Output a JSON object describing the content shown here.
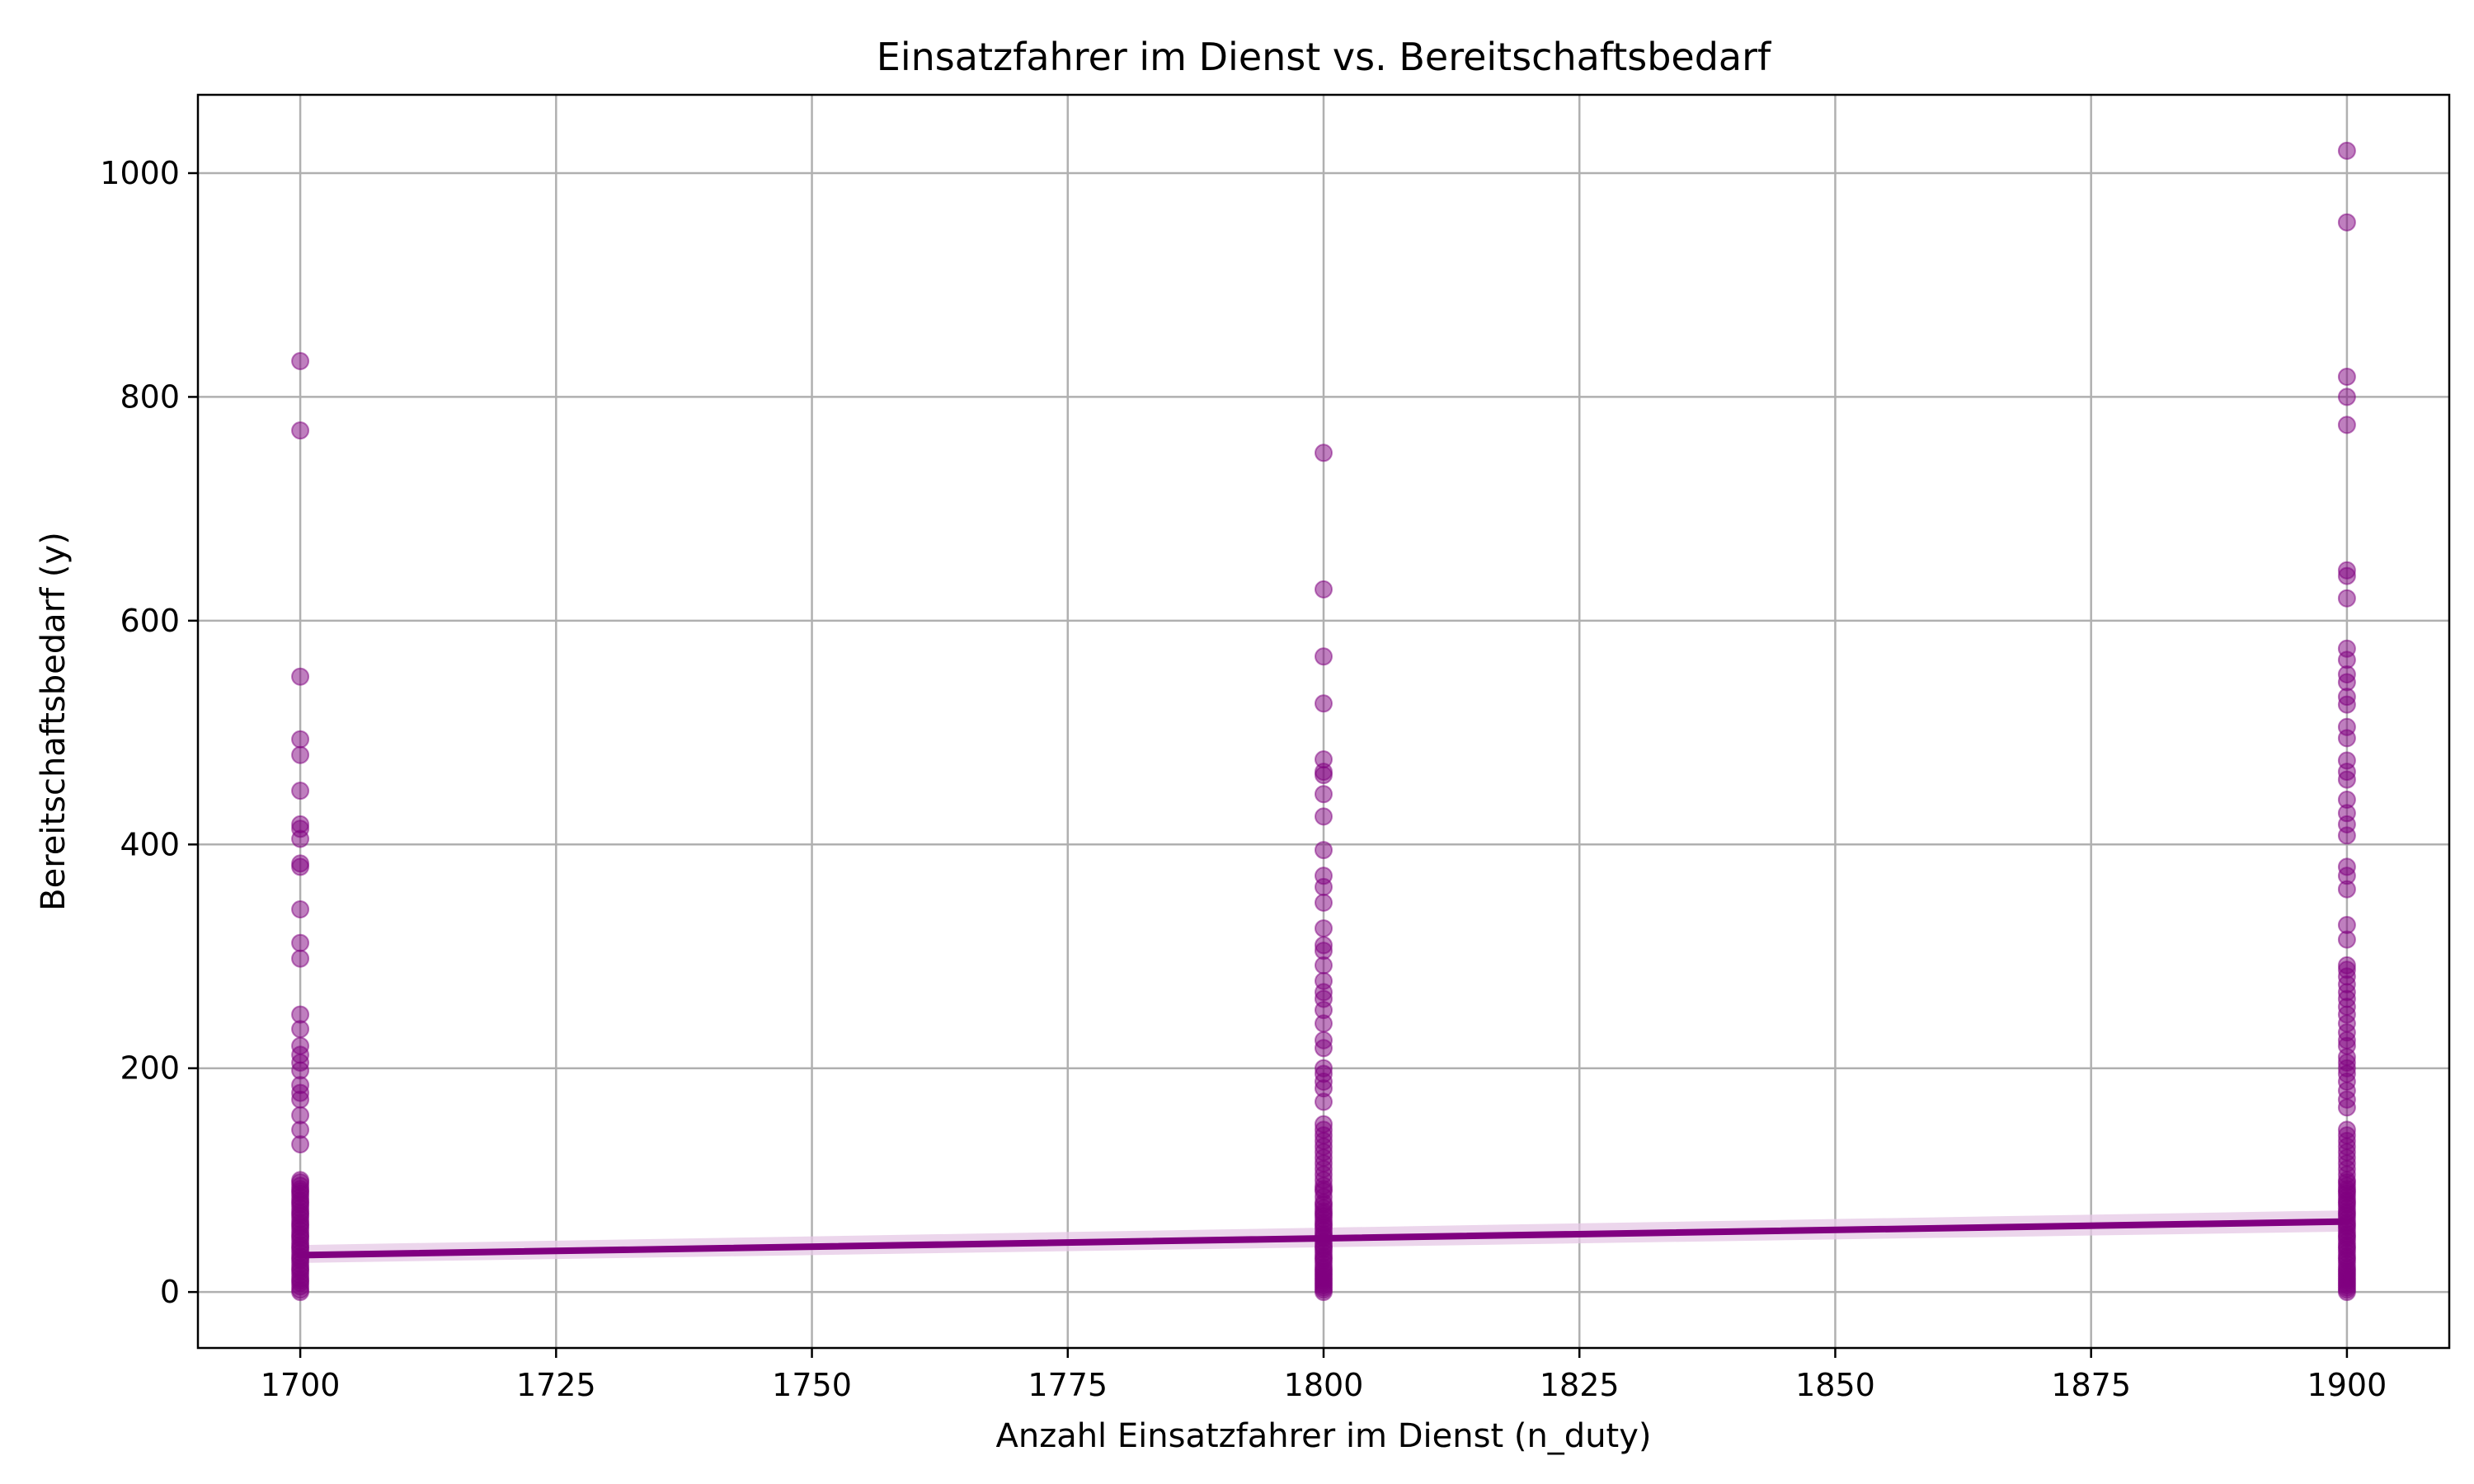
{
  "chart_data": {
    "type": "scatter",
    "title": "Einsatzfahrer im Dienst vs. Bereitschaftsbedarf",
    "xlabel": "Anzahl Einsatzfahrer im Dienst (n_duty)",
    "ylabel": "Bereitschaftsbedarf (y)",
    "xlim": [
      1690,
      1910
    ],
    "ylim": [
      -50,
      1070
    ],
    "xticks": [
      1700,
      1725,
      1750,
      1775,
      1800,
      1825,
      1850,
      1875,
      1900
    ],
    "yticks": [
      0,
      200,
      400,
      600,
      800,
      1000
    ],
    "grid": true,
    "point_color": "#800080",
    "point_opacity": 0.5,
    "series": [
      {
        "x": 1700,
        "values": [
          0,
          2,
          5,
          8,
          10,
          12,
          15,
          18,
          20,
          22,
          25,
          28,
          30,
          32,
          35,
          38,
          40,
          42,
          45,
          48,
          50,
          52,
          55,
          58,
          60,
          62,
          65,
          68,
          70,
          72,
          75,
          78,
          80,
          82,
          85,
          88,
          90,
          92,
          95,
          98,
          100,
          132,
          145,
          158,
          172,
          178,
          185,
          198,
          205,
          212,
          220,
          235,
          248,
          298,
          312,
          342,
          380,
          383,
          405,
          414,
          418,
          448,
          480,
          494,
          550,
          770,
          832
        ]
      },
      {
        "x": 1800,
        "values": [
          0,
          2,
          4,
          6,
          8,
          10,
          12,
          14,
          16,
          18,
          20,
          22,
          25,
          28,
          30,
          32,
          35,
          38,
          40,
          42,
          45,
          48,
          50,
          52,
          55,
          58,
          60,
          62,
          65,
          68,
          70,
          72,
          75,
          78,
          80,
          85,
          90,
          92,
          95,
          100,
          105,
          110,
          115,
          120,
          125,
          130,
          135,
          140,
          145,
          150,
          170,
          182,
          188,
          195,
          200,
          218,
          225,
          240,
          252,
          262,
          268,
          278,
          292,
          305,
          310,
          325,
          348,
          362,
          372,
          395,
          425,
          445,
          462,
          465,
          476,
          526,
          568,
          628,
          750
        ]
      },
      {
        "x": 1900,
        "values": [
          0,
          2,
          4,
          6,
          8,
          10,
          12,
          14,
          16,
          18,
          20,
          22,
          25,
          28,
          30,
          32,
          35,
          38,
          40,
          42,
          45,
          48,
          50,
          52,
          55,
          58,
          60,
          62,
          65,
          68,
          70,
          72,
          75,
          78,
          80,
          82,
          85,
          88,
          90,
          92,
          95,
          98,
          100,
          105,
          110,
          115,
          120,
          125,
          130,
          135,
          140,
          145,
          165,
          172,
          180,
          188,
          195,
          200,
          205,
          210,
          220,
          225,
          232,
          240,
          248,
          255,
          262,
          268,
          275,
          282,
          288,
          292,
          315,
          328,
          360,
          372,
          380,
          408,
          418,
          428,
          440,
          458,
          465,
          475,
          495,
          505,
          525,
          532,
          545,
          552,
          565,
          575,
          620,
          640,
          645,
          775,
          800,
          818,
          956,
          1020
        ]
      }
    ],
    "regression": {
      "x": [
        1700,
        1900
      ],
      "y": [
        33,
        63
      ],
      "ci_lower": [
        26,
        54
      ],
      "ci_upper": [
        42,
        73
      ],
      "color": "#800080",
      "ci_color": "#e6c8e6"
    }
  }
}
